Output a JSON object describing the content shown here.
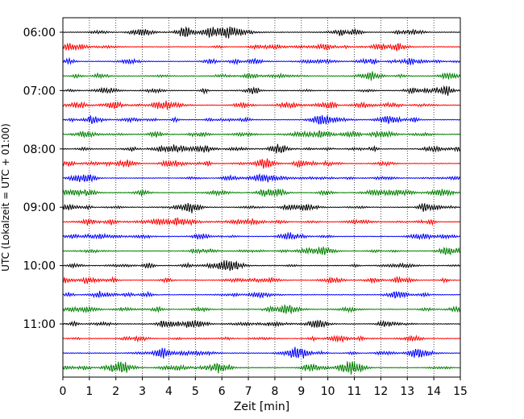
{
  "chart_data": {
    "type": "line",
    "title": "",
    "xlabel": "Zeit  [min]",
    "ylabel": "UTC (Lokalzeit = UTC + 01:00)",
    "xlim": [
      0,
      15
    ],
    "x_ticks": [
      "0",
      "1",
      "2",
      "3",
      "4",
      "5",
      "6",
      "7",
      "8",
      "9",
      "10",
      "11",
      "12",
      "13",
      "14",
      "15"
    ],
    "y_tick_labels": [
      "06:00",
      "07:00",
      "08:00",
      "09:00",
      "10:00",
      "11:00"
    ],
    "grid": "vertical dotted lines at each minute",
    "traces_per_hour": 4,
    "trace_interval_min": 15,
    "trace_start_times": [
      "06:00",
      "06:15",
      "06:30",
      "06:45",
      "07:00",
      "07:15",
      "07:30",
      "07:45",
      "08:00",
      "08:15",
      "08:30",
      "08:45",
      "09:00",
      "09:15",
      "09:30",
      "09:45",
      "10:00",
      "10:15",
      "10:30",
      "10:45",
      "11:00",
      "11:15",
      "11:30",
      "11:45"
    ],
    "colors": [
      "#000000",
      "#ff0000",
      "#0000ff",
      "#008000"
    ]
  }
}
